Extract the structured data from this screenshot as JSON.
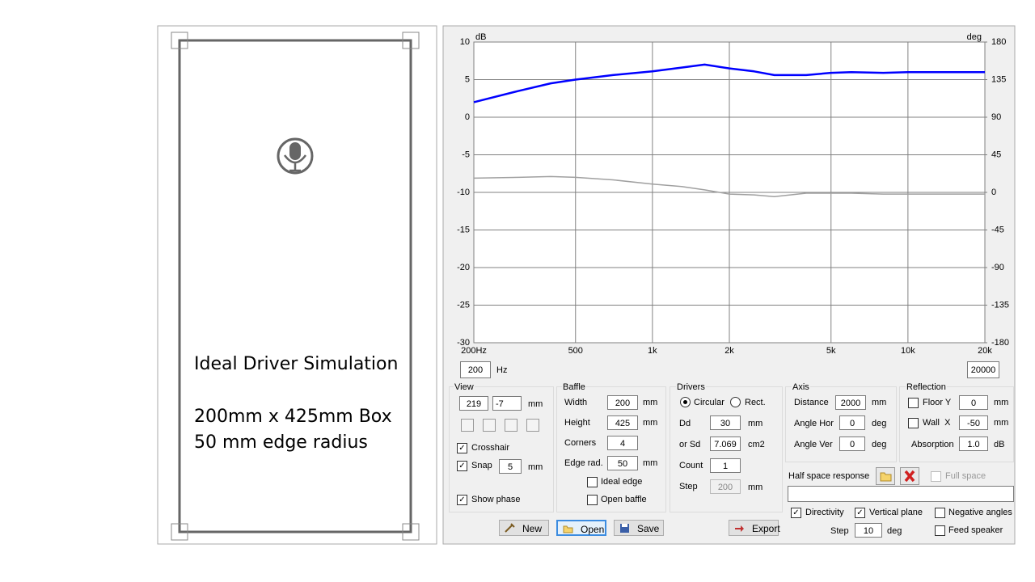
{
  "chart_data": {
    "type": "line",
    "y_unit": "dB",
    "y2_unit": "deg",
    "log_x": true,
    "grid": true,
    "x": [
      200,
      300,
      400,
      500,
      700,
      1000,
      1300,
      1600,
      2000,
      2500,
      3000,
      4000,
      5000,
      6000,
      8000,
      10000,
      20000
    ],
    "xlim": [
      200,
      20000
    ],
    "xticks": [
      {
        "value": 200,
        "label": "200Hz"
      },
      500,
      {
        "value": 1000,
        "label": "1k"
      },
      {
        "value": 2000,
        "label": "2k"
      },
      {
        "value": 5000,
        "label": "5k"
      },
      {
        "value": 10000,
        "label": "10k"
      },
      {
        "value": 20000,
        "label": "20k"
      }
    ],
    "ylim": [
      -30,
      10
    ],
    "yticks": [
      -30,
      -25,
      -20,
      -15,
      -10,
      -5,
      0,
      5,
      10
    ],
    "y2lim": [
      -180,
      180
    ],
    "y2ticks": [
      -180,
      -135,
      -90,
      -45,
      0,
      45,
      90,
      135,
      180
    ],
    "series": [
      {
        "color": "#0000ff",
        "values": [
          2.0,
          3.5,
          4.5,
          5.0,
          5.6,
          6.1,
          6.6,
          7.0,
          6.5,
          6.1,
          5.6,
          5.6,
          5.9,
          6.0,
          5.9,
          6.0,
          6.0
        ]
      },
      {
        "color": "#a0a0a0",
        "axis": "y2",
        "values": [
          17,
          18,
          19,
          18,
          15,
          10,
          7,
          3,
          -2,
          -3,
          -5,
          -1,
          -1,
          -1,
          -2,
          -2,
          -2
        ]
      }
    ]
  },
  "canvas": {
    "caption": [
      "Ideal Driver Simulation",
      "200mm x 425mm Box",
      "50 mm edge radius"
    ]
  },
  "controls": {
    "range": {
      "min": "200",
      "unit": "Hz",
      "max": "20000"
    },
    "view": {
      "title": "View",
      "x": "219",
      "y": "-7",
      "unit": "mm",
      "crosshair": {
        "label": "Crosshair",
        "checked": true
      },
      "snap": {
        "label": "Snap",
        "checked": true,
        "value": "5",
        "unit": "mm"
      },
      "show_phase": {
        "label": "Show phase",
        "checked": true
      }
    },
    "baffle": {
      "title": "Baffle",
      "width": {
        "label": "Width",
        "value": "200",
        "unit": "mm"
      },
      "height": {
        "label": "Height",
        "value": "425",
        "unit": "mm"
      },
      "corners": {
        "label": "Corners",
        "value": "4"
      },
      "edge_rad": {
        "label": "Edge rad.",
        "value": "50",
        "unit": "mm"
      },
      "ideal_edge": {
        "label": "Ideal edge",
        "checked": false
      },
      "open_baffle": {
        "label": "Open baffle",
        "checked": false
      }
    },
    "drivers": {
      "title": "Drivers",
      "circular": {
        "label": "Circular",
        "checked": true
      },
      "rect": {
        "label": "Rect.",
        "checked": false
      },
      "dd": {
        "label": "Dd",
        "value": "30",
        "unit": "mm"
      },
      "sd": {
        "label": "or Sd",
        "value": "7.069",
        "unit": "cm2"
      },
      "count": {
        "label": "Count",
        "value": "1"
      },
      "step": {
        "label": "Step",
        "value": "200",
        "unit": "mm"
      }
    },
    "axis": {
      "title": "Axis",
      "distance": {
        "label": "Distance",
        "value": "2000",
        "unit": "mm"
      },
      "angle_hor": {
        "label": "Angle Hor",
        "value": "0",
        "unit": "deg"
      },
      "angle_ver": {
        "label": "Angle Ver",
        "value": "0",
        "unit": "deg"
      }
    },
    "reflection": {
      "title": "Reflection",
      "floor": {
        "label": "Floor Y",
        "checked": false,
        "value": "0",
        "unit": "mm"
      },
      "wall": {
        "label": "Wall  X",
        "checked": false,
        "value": "-50",
        "unit": "mm"
      },
      "absorption": {
        "label": "Absorption",
        "value": "1.0",
        "unit": "dB"
      }
    },
    "half_space": {
      "label": "Half space response",
      "full_space": {
        "label": "Full space",
        "checked": false
      }
    },
    "directivity": {
      "label": "Directivity",
      "checked": true
    },
    "vertical_plane": {
      "label": "Vertical plane",
      "checked": true
    },
    "negative_angles": {
      "label": "Negative angles",
      "checked": false
    },
    "feed_speaker": {
      "label": "Feed speaker",
      "checked": false
    },
    "dir_step": {
      "label": "Step",
      "value": "10",
      "unit": "deg"
    },
    "buttons": {
      "new": "New",
      "open": "Open",
      "save": "Save",
      "export": "Export"
    }
  }
}
